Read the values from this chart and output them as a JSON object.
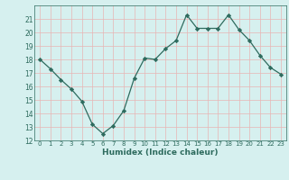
{
  "x": [
    0,
    1,
    2,
    3,
    4,
    5,
    6,
    7,
    8,
    9,
    10,
    11,
    12,
    13,
    14,
    15,
    16,
    17,
    18,
    19,
    20,
    21,
    22,
    23
  ],
  "y": [
    18,
    17.3,
    16.5,
    15.8,
    14.9,
    13.2,
    12.5,
    13.1,
    14.2,
    16.6,
    18.1,
    18.0,
    18.8,
    19.4,
    21.3,
    20.3,
    20.3,
    20.3,
    21.3,
    20.2,
    19.4,
    18.3,
    17.4,
    16.9
  ],
  "xlabel": "Humidex (Indice chaleur)",
  "ylim": [
    12,
    22
  ],
  "xlim": [
    -0.5,
    23.5
  ],
  "yticks": [
    12,
    13,
    14,
    15,
    16,
    17,
    18,
    19,
    20,
    21
  ],
  "xticks": [
    0,
    1,
    2,
    3,
    4,
    5,
    6,
    7,
    8,
    9,
    10,
    11,
    12,
    13,
    14,
    15,
    16,
    17,
    18,
    19,
    20,
    21,
    22,
    23
  ],
  "line_color": "#2e6b5e",
  "marker_color": "#2e6b5e",
  "bg_color": "#d6f0ef",
  "grid_color": "#e8b4b4",
  "axis_color": "#2e6b5e"
}
